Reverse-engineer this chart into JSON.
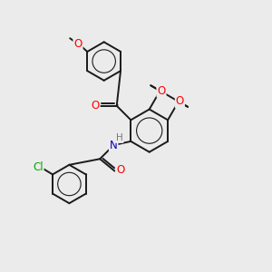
{
  "bg_color": "#ebebeb",
  "bond_color": "#1a1a1a",
  "bond_width": 1.4,
  "atom_colors": {
    "O": "#ff0000",
    "N": "#0000cc",
    "Cl": "#00aa00",
    "H": "#777777"
  },
  "font_size": 8.5
}
